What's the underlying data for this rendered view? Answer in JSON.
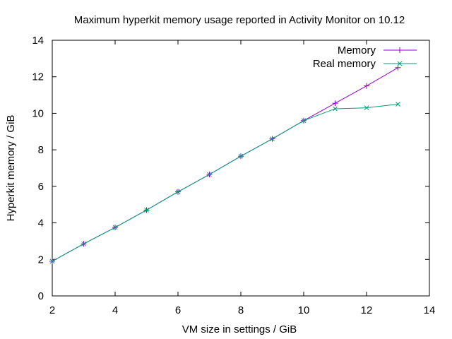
{
  "chart_data": {
    "type": "line",
    "title": "Maximum hyperkit memory usage reported in Activity Monitor on 10.12",
    "xlabel": "VM size in settings / GiB",
    "ylabel": "Hyperkit memory / GiB",
    "xlim": [
      2,
      14
    ],
    "ylim": [
      0,
      14
    ],
    "xticks": [
      2,
      4,
      6,
      8,
      10,
      12,
      14
    ],
    "yticks": [
      0,
      2,
      4,
      6,
      8,
      10,
      12,
      14
    ],
    "grid": false,
    "legend_position": "top-right",
    "series": [
      {
        "name": "Memory",
        "color": "#9400d3",
        "marker": "plus",
        "x": [
          2,
          3,
          4,
          5,
          6,
          7,
          8,
          9,
          10,
          11,
          12,
          13
        ],
        "y": [
          1.9,
          2.85,
          3.75,
          4.7,
          5.7,
          6.65,
          7.65,
          8.6,
          9.6,
          10.55,
          11.5,
          12.5
        ]
      },
      {
        "name": "Real memory",
        "color": "#009e73",
        "marker": "cross",
        "x": [
          2,
          3,
          4,
          5,
          6,
          7,
          8,
          9,
          10,
          11,
          12,
          13
        ],
        "y": [
          1.9,
          2.85,
          3.75,
          4.7,
          5.7,
          6.65,
          7.65,
          8.6,
          9.6,
          10.25,
          10.3,
          10.5
        ]
      }
    ]
  }
}
